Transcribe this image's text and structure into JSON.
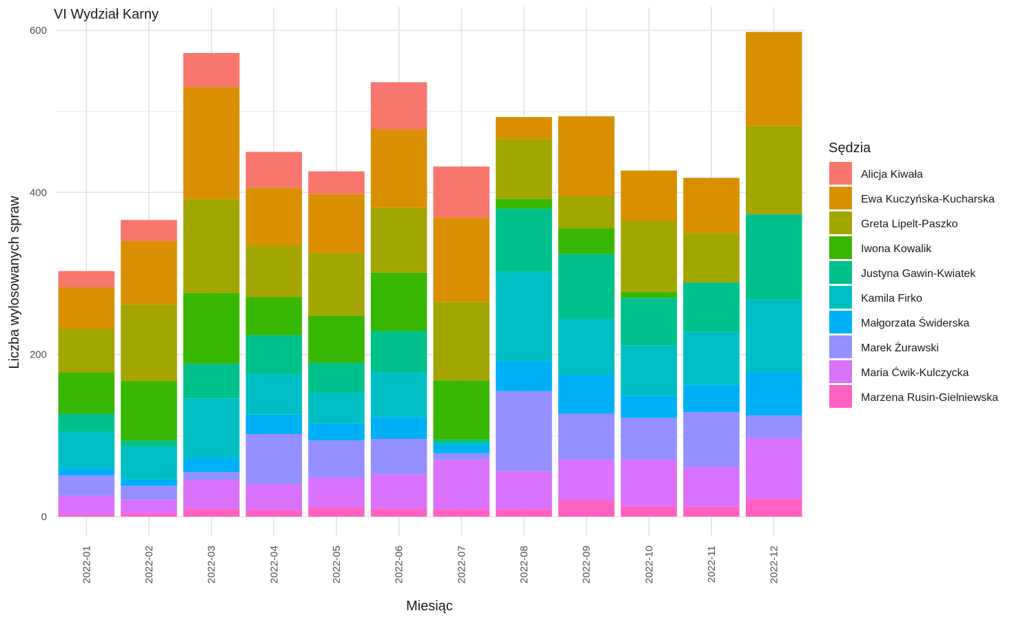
{
  "chart_data": {
    "type": "bar",
    "stacked": true,
    "title": "VI Wydział Karny",
    "xlabel": "Miesiąc",
    "ylabel": "Liczba wylosowanych spraw",
    "ylim": [
      -20,
      600
    ],
    "y_ticks": [
      0,
      200,
      400,
      600
    ],
    "grid": true,
    "legend_title": "Sędzia",
    "legend_position": "right",
    "categories": [
      "2022-01",
      "2022-02",
      "2022-03",
      "2022-04",
      "2022-05",
      "2022-06",
      "2022-07",
      "2022-08",
      "2022-09",
      "2022-10",
      "2022-11",
      "2022-12"
    ],
    "series": [
      {
        "name": "Marzena Rusin-Gielniewska",
        "color": "#FF61C3",
        "values": [
          2,
          4,
          10,
          8,
          11,
          10,
          9,
          9,
          20,
          13,
          12,
          22
        ]
      },
      {
        "name": "Maria Ćwik-Kulczycka",
        "color": "#DB72FB",
        "values": [
          24,
          17,
          35,
          32,
          37,
          42,
          61,
          47,
          50,
          57,
          49,
          75
        ]
      },
      {
        "name": "Marek Żurawski",
        "color": "#9590FF",
        "values": [
          25,
          17,
          10,
          62,
          46,
          44,
          8,
          99,
          57,
          52,
          68,
          28
        ]
      },
      {
        "name": "Małgorzata Świderska",
        "color": "#00B0F6",
        "values": [
          9,
          8,
          18,
          24,
          21,
          27,
          10,
          37,
          48,
          27,
          34,
          53
        ]
      },
      {
        "name": "Kamila Firko",
        "color": "#00BFC4",
        "values": [
          45,
          40,
          73,
          50,
          38,
          55,
          3,
          110,
          69,
          62,
          65,
          90
        ]
      },
      {
        "name": "Justyna Gawin-Kwiatek",
        "color": "#00C08B",
        "values": [
          22,
          8,
          43,
          48,
          37,
          51,
          4,
          78,
          80,
          59,
          61,
          105
        ]
      },
      {
        "name": "Iwona Kowalik",
        "color": "#39B600",
        "values": [
          51,
          73,
          87,
          47,
          58,
          72,
          73,
          12,
          32,
          7,
          0,
          0
        ]
      },
      {
        "name": "Greta Lipelt-Paszko",
        "color": "#A3A500",
        "values": [
          54,
          95,
          116,
          63,
          77,
          80,
          97,
          74,
          40,
          88,
          61,
          109
        ]
      },
      {
        "name": "Ewa Kuczyńska-Kucharska",
        "color": "#D89000",
        "values": [
          51,
          78,
          138,
          72,
          73,
          97,
          104,
          27,
          98,
          62,
          68,
          116
        ]
      },
      {
        "name": "Alicja Kiwała",
        "color": "#F8766D",
        "values": [
          20,
          26,
          42,
          44,
          28,
          58,
          63,
          0,
          0,
          0,
          0,
          0
        ]
      }
    ],
    "legend_order": [
      "Alicja Kiwała",
      "Ewa Kuczyńska-Kucharska",
      "Greta Lipelt-Paszko",
      "Iwona Kowalik",
      "Justyna Gawin-Kwiatek",
      "Kamila Firko",
      "Małgorzata Świderska",
      "Marek Żurawski",
      "Maria Ćwik-Kulczycka",
      "Marzena Rusin-Gielniewska"
    ]
  }
}
